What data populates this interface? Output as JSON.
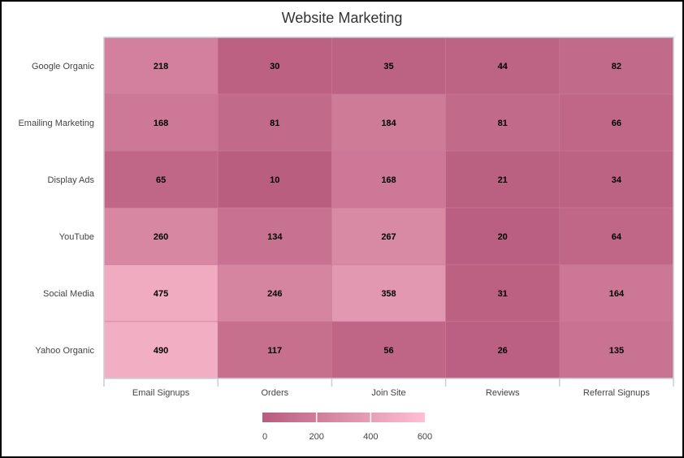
{
  "chart_data": {
    "type": "heatmap",
    "title": "Website Marketing",
    "xlabel": "",
    "ylabel": "",
    "x_categories": [
      "Email Signups",
      "Orders",
      "Join Site",
      "Reviews",
      "Referral Signups"
    ],
    "y_categories": [
      "Google Organic",
      "Emailing Marketing",
      "Display Ads",
      "YouTube",
      "Social Media",
      "Yahoo Organic"
    ],
    "values": [
      [
        218,
        30,
        35,
        44,
        82
      ],
      [
        168,
        81,
        184,
        81,
        66
      ],
      [
        65,
        10,
        168,
        21,
        34
      ],
      [
        260,
        134,
        267,
        20,
        64
      ],
      [
        475,
        246,
        358,
        31,
        164
      ],
      [
        490,
        117,
        56,
        26,
        135
      ]
    ],
    "color_range": [
      0,
      600
    ],
    "color_low": "#b85c7e",
    "color_high": "#ffc0d2",
    "legend": {
      "placement": "bottom",
      "ticks": [
        "0",
        "200",
        "400",
        "600"
      ]
    }
  }
}
